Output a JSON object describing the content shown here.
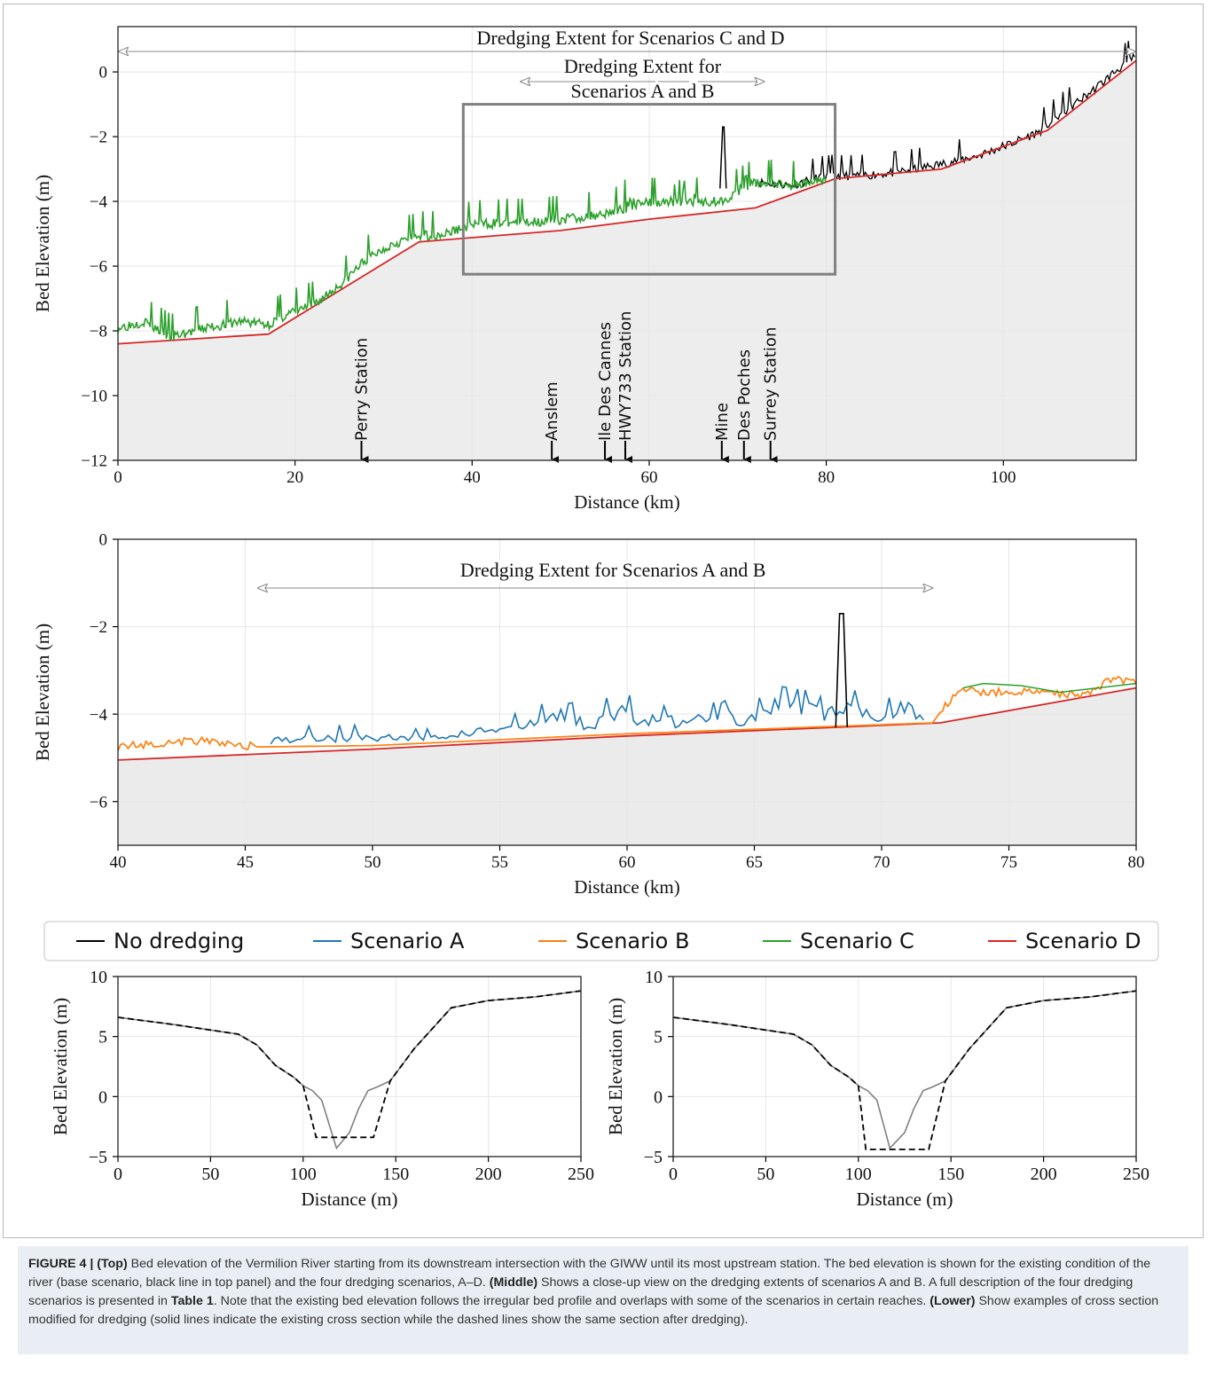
{
  "chart_data": [
    {
      "id": "top",
      "type": "line",
      "xlabel": "Distance (km)",
      "ylabel": "Bed Elevation (m)",
      "xlim": [
        0,
        115
      ],
      "ylim": [
        -12,
        1.4
      ],
      "xticks": [
        0,
        20,
        40,
        60,
        80,
        100
      ],
      "yticks": [
        0,
        -2,
        -4,
        -6,
        -8,
        -10,
        -12
      ],
      "grid": true,
      "annotations": [
        {
          "text": "Dredging Extent for Scenarios C and D",
          "x_start": 0,
          "x_end": 115
        },
        {
          "text_lines": [
            "Dredging Extent for",
            "Scenarios A and B"
          ],
          "x_start": 45.5,
          "x_end": 73
        }
      ],
      "inset_box": {
        "x": [
          39,
          81
        ],
        "y": [
          -6.25,
          -1
        ]
      },
      "stations": [
        {
          "name": "Perry Station",
          "x": 27.5
        },
        {
          "name": "Anslem",
          "x": 49
        },
        {
          "name": "Ile Des Cannes",
          "x": 55
        },
        {
          "name": "HWY733 Station",
          "x": 57.3
        },
        {
          "name": "Mine",
          "x": 68.2
        },
        {
          "name": "Des Poches",
          "x": 70.7
        },
        {
          "name": "Surrey Station",
          "x": 73.7
        }
      ],
      "series": [
        {
          "name": "Scenario D",
          "color": "#d62728",
          "x": [
            0,
            17,
            34,
            50,
            60,
            72,
            81,
            93,
            105,
            115
          ],
          "y": [
            -8.4,
            -8.1,
            -5.25,
            -4.9,
            -4.55,
            -4.2,
            -3.3,
            -3.0,
            -1.8,
            0.35
          ]
        },
        {
          "name": "Scenario C",
          "color": "#2ca02c",
          "x": [
            0,
            3,
            6,
            10,
            14,
            17,
            19,
            22,
            25,
            28,
            31,
            34,
            37,
            40,
            44,
            48,
            52,
            56,
            60,
            64,
            68,
            72,
            76,
            80
          ],
          "y": [
            -7.9,
            -7.7,
            -8.2,
            -7.9,
            -7.7,
            -7.8,
            -7.5,
            -7.2,
            -6.6,
            -5.8,
            -5.3,
            -5.05,
            -5.0,
            -4.7,
            -4.65,
            -4.6,
            -4.5,
            -4.3,
            -4.0,
            -4.0,
            -4.0,
            -3.4,
            -3.5,
            -3.3
          ]
        },
        {
          "name": "No dredging",
          "color": "#000000",
          "x": [
            72,
            76,
            80,
            84,
            88,
            93,
            97,
            101,
            104,
            107,
            110,
            113,
            115
          ],
          "y": [
            -3.4,
            -3.5,
            -3.2,
            -3.2,
            -3.1,
            -2.85,
            -2.6,
            -2.2,
            -1.85,
            -1.2,
            -0.6,
            0.1,
            0.5
          ]
        },
        {
          "name": "No dredging spike",
          "color": "#000000",
          "x": [
            68.0,
            68.3,
            68.45,
            68.7
          ],
          "y": [
            -3.6,
            -1.7,
            -1.7,
            -3.6
          ]
        }
      ]
    },
    {
      "id": "middle",
      "type": "line",
      "xlabel": "Distance (km)",
      "ylabel": "Bed Elevation (m)",
      "xlim": [
        40,
        80
      ],
      "ylim": [
        -7,
        0
      ],
      "xticks": [
        40,
        45,
        50,
        55,
        60,
        65,
        70,
        75,
        80
      ],
      "yticks": [
        0,
        -2,
        -4,
        -6
      ],
      "grid": true,
      "annotations": [
        {
          "text": "Dredging Extent for Scenarios A and B",
          "x_start": 45.5,
          "x_end": 72
        }
      ],
      "series": [
        {
          "name": "Scenario D",
          "color": "#d62728",
          "x": [
            40,
            50,
            60,
            72.3,
            80
          ],
          "y": [
            -5.05,
            -4.8,
            -4.5,
            -4.2,
            -3.4
          ]
        },
        {
          "name": "Scenario B",
          "color": "#ff7f0e",
          "x": [
            40,
            43,
            45.5,
            50,
            60,
            72,
            72.5,
            73.2,
            74,
            76,
            78,
            79,
            80
          ],
          "y": [
            -4.75,
            -4.6,
            -4.75,
            -4.72,
            -4.45,
            -4.2,
            -3.8,
            -3.45,
            -3.5,
            -3.5,
            -3.55,
            -3.2,
            -3.25
          ]
        },
        {
          "name": "Scenario C",
          "color": "#2ca02c",
          "x": [
            73.2,
            74,
            75.5,
            77,
            78.5,
            80
          ],
          "y": [
            -3.4,
            -3.3,
            -3.35,
            -3.5,
            -3.4,
            -3.3
          ]
        },
        {
          "name": "Scenario A",
          "color": "#1f77b4",
          "x": [
            46,
            48,
            50,
            52,
            54,
            56,
            57.8,
            58.5,
            59.5,
            61,
            62.5,
            63.8,
            64.5,
            65.8,
            67,
            67.8,
            69,
            70,
            70.8,
            71.8
          ],
          "y": [
            -4.5,
            -4.4,
            -4.4,
            -4.5,
            -4.3,
            -4.1,
            -3.6,
            -4.2,
            -3.6,
            -3.9,
            -4.1,
            -3.4,
            -4.1,
            -3.5,
            -3.6,
            -3.8,
            -3.6,
            -4.0,
            -3.4,
            -4.2
          ]
        },
        {
          "name": "No dredging spike",
          "color": "#000000",
          "x": [
            68.2,
            68.35,
            68.5,
            68.65
          ],
          "y": [
            -4.3,
            -1.7,
            -1.7,
            -4.3
          ]
        }
      ]
    },
    {
      "id": "lower-left",
      "type": "line",
      "xlabel": "Distance (m)",
      "ylabel": "Bed Elevation (m)",
      "xlim": [
        0,
        250
      ],
      "ylim": [
        -5,
        10
      ],
      "xticks": [
        0,
        50,
        100,
        150,
        200,
        250
      ],
      "yticks": [
        -5,
        0,
        5,
        10
      ],
      "grid": true,
      "series": [
        {
          "name": "existing",
          "style": "solid",
          "color": "#808080",
          "x": [
            0,
            30,
            65,
            75,
            85,
            95,
            100,
            105,
            110,
            118,
            125,
            130,
            135,
            140,
            147,
            160,
            180,
            200,
            225,
            250
          ],
          "y": [
            6.6,
            6.0,
            5.2,
            4.3,
            2.6,
            1.6,
            0.9,
            0.5,
            -0.3,
            -4.3,
            -3.0,
            -1.0,
            0.5,
            0.8,
            1.3,
            4.0,
            7.4,
            8.0,
            8.3,
            8.8
          ]
        },
        {
          "name": "dredged",
          "style": "dashed",
          "color": "#000000",
          "x": [
            0,
            30,
            65,
            75,
            85,
            95,
            100,
            107,
            138,
            147,
            160,
            180,
            200,
            225,
            250
          ],
          "y": [
            6.6,
            6.0,
            5.2,
            4.3,
            2.6,
            1.6,
            0.9,
            -3.4,
            -3.4,
            1.3,
            4.0,
            7.4,
            8.0,
            8.3,
            8.8
          ]
        }
      ]
    },
    {
      "id": "lower-right",
      "type": "line",
      "xlabel": "Distance (m)",
      "ylabel": "Bed Elevation (m)",
      "xlim": [
        0,
        250
      ],
      "ylim": [
        -5,
        10
      ],
      "xticks": [
        0,
        50,
        100,
        150,
        200,
        250
      ],
      "yticks": [
        -5,
        0,
        5,
        10
      ],
      "grid": true,
      "series": [
        {
          "name": "existing",
          "style": "solid",
          "color": "#808080",
          "x": [
            0,
            30,
            65,
            75,
            85,
            95,
            100,
            105,
            110,
            117,
            125,
            130,
            135,
            140,
            147,
            160,
            180,
            200,
            225,
            250
          ],
          "y": [
            6.6,
            6.0,
            5.2,
            4.3,
            2.6,
            1.6,
            0.9,
            0.5,
            -0.3,
            -4.3,
            -3.0,
            -1.0,
            0.5,
            0.8,
            1.3,
            4.0,
            7.4,
            8.0,
            8.3,
            8.8
          ]
        },
        {
          "name": "dredged",
          "style": "dashed",
          "color": "#000000",
          "x": [
            0,
            30,
            65,
            75,
            85,
            95,
            100,
            104,
            138,
            147,
            160,
            180,
            200,
            225,
            250
          ],
          "y": [
            6.6,
            6.0,
            5.2,
            4.3,
            2.6,
            1.6,
            0.9,
            -4.4,
            -4.4,
            1.3,
            4.0,
            7.4,
            8.0,
            8.3,
            8.8
          ]
        }
      ]
    }
  ],
  "legend": [
    {
      "label": "No dredging",
      "color": "#000000"
    },
    {
      "label": "Scenario A",
      "color": "#1f77b4"
    },
    {
      "label": "Scenario B",
      "color": "#ff7f0e"
    },
    {
      "label": "Scenario C",
      "color": "#2ca02c"
    },
    {
      "label": "Scenario D",
      "color": "#d62728"
    }
  ],
  "caption": {
    "figure_label": "FIGURE 4 |",
    "top_label": "(Top)",
    "top_text": " Bed elevation of the Vermilion River starting from its downstream intersection with the GIWW until its most upstream station. The bed elevation is shown for the existing condition of the river (base scenario, black line in top panel) and the four dredging scenarios, A–D. ",
    "middle_label": "(Middle)",
    "middle_text_1": " Shows a close-up view on the dredging extents of scenarios A and B. A full description of the four dredging scenarios is presented in ",
    "table_ref": "Table 1",
    "middle_text_2": ". Note that the existing bed elevation follows the irregular bed profile and overlaps with some of the scenarios in certain reaches. ",
    "lower_label": "(Lower)",
    "lower_text": " Show examples of cross section modified for dredging (solid lines indicate the existing cross section while the dashed lines show the same section after dredging)."
  }
}
